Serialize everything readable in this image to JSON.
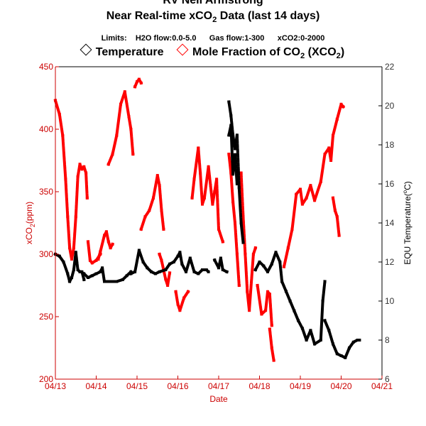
{
  "header": {
    "line1": "RV Neil Armstrong",
    "line2_pre": "Near Real-time xCO",
    "line2_sub": "2",
    "line2_post": " Data (last 14 days)",
    "limits": "Limits:    H2O flow:0.0-5.0      Gas flow:1-300      xCO2:0-2000"
  },
  "legend": {
    "temperature": "Temperature",
    "co2_pre": "Mole Fraction of CO",
    "co2_sub1": "2",
    "co2_mid": " (XCO",
    "co2_sub2": "2",
    "co2_post": ")"
  },
  "colors": {
    "co2": "#ff0000",
    "temp": "#000000",
    "axis_left": "#cc0000"
  },
  "chart_data": {
    "type": "scatter",
    "xlabel": "Date",
    "ylabel_left": "xCO2(ppm)",
    "ylabel_left_pre": "xCO",
    "ylabel_left_sub": "2",
    "ylabel_left_post": "(ppm)",
    "ylabel_right": "EQU Temperature(°C)",
    "ylabel_right_pre": "EQU Temperature(",
    "ylabel_right_sup": "o",
    "ylabel_right_post": "C)",
    "xlim": [
      0,
      8
    ],
    "x_ticks": [
      "04/13",
      "04/14",
      "04/15",
      "04/16",
      "04/17",
      "04/18",
      "04/19",
      "04/20",
      "04/21"
    ],
    "ylim_left": [
      200,
      450
    ],
    "y_ticks_left": [
      "200",
      "250",
      "300",
      "350",
      "400",
      "450"
    ],
    "ylim_right": [
      6,
      22
    ],
    "y_ticks_right": [
      "6",
      "8",
      "10",
      "12",
      "14",
      "16",
      "18",
      "20",
      "22"
    ],
    "series": [
      {
        "name": "Mole Fraction of CO2 (XCO2)",
        "axis": "left",
        "segments": [
          [
            [
              0.0,
              423
            ],
            [
              0.1,
              412
            ],
            [
              0.18,
              395
            ],
            [
              0.25,
              360
            ],
            [
              0.3,
              330
            ],
            [
              0.35,
              305
            ],
            [
              0.4,
              296
            ],
            [
              0.45,
              305
            ],
            [
              0.5,
              330
            ],
            [
              0.55,
              362
            ],
            [
              0.6,
              372
            ],
            [
              0.65,
              368
            ],
            [
              0.7,
              370
            ],
            [
              0.75,
              365
            ],
            [
              0.78,
              345
            ]
          ],
          [
            [
              0.8,
              310
            ],
            [
              0.85,
              295
            ],
            [
              0.9,
              293
            ],
            [
              1.0,
              295
            ],
            [
              1.1,
              300
            ]
          ],
          [
            [
              1.05,
              296
            ],
            [
              1.1,
              302
            ],
            [
              1.2,
              315
            ],
            [
              1.25,
              318
            ],
            [
              1.3,
              310
            ],
            [
              1.35,
              305
            ],
            [
              1.4,
              308
            ]
          ],
          [
            [
              1.3,
              372
            ],
            [
              1.4,
              380
            ],
            [
              1.5,
              395
            ],
            [
              1.6,
              420
            ],
            [
              1.7,
              430
            ],
            [
              1.8,
              410
            ],
            [
              1.85,
              400
            ],
            [
              1.9,
              380
            ]
          ],
          [
            [
              1.95,
              434
            ],
            [
              2.0,
              438
            ],
            [
              2.05,
              440
            ],
            [
              2.1,
              437
            ]
          ],
          [
            [
              2.1,
              320
            ],
            [
              2.2,
              330
            ],
            [
              2.3,
              335
            ],
            [
              2.4,
              345
            ],
            [
              2.5,
              363
            ],
            [
              2.55,
              355
            ],
            [
              2.6,
              335
            ],
            [
              2.65,
              320
            ]
          ],
          [
            [
              2.55,
              300
            ],
            [
              2.6,
              295
            ],
            [
              2.7,
              280
            ],
            [
              2.75,
              275
            ],
            [
              2.8,
              285
            ]
          ],
          [
            [
              2.95,
              270
            ],
            [
              3.0,
              260
            ],
            [
              3.05,
              255
            ],
            [
              3.15,
              265
            ],
            [
              3.25,
              270
            ]
          ],
          [
            [
              3.35,
              345
            ],
            [
              3.4,
              360
            ],
            [
              3.5,
              385
            ],
            [
              3.55,
              365
            ],
            [
              3.6,
              340
            ],
            [
              3.65,
              345
            ],
            [
              3.75,
              370
            ],
            [
              3.8,
              355
            ],
            [
              3.85,
              340
            ],
            [
              3.9,
              350
            ],
            [
              3.95,
              360
            ],
            [
              4.0,
              320
            ],
            [
              4.1,
              310
            ]
          ],
          [
            [
              4.25,
              380
            ],
            [
              4.3,
              365
            ],
            [
              4.35,
              342
            ],
            [
              4.4,
              325
            ],
            [
              4.45,
              300
            ],
            [
              4.5,
              275
            ]
          ],
          [
            [
              4.55,
              365
            ],
            [
              4.6,
              330
            ],
            [
              4.65,
              300
            ],
            [
              4.7,
              270
            ],
            [
              4.75,
              255
            ],
            [
              4.85,
              300
            ],
            [
              4.9,
              305
            ]
          ],
          [
            [
              4.95,
              275
            ],
            [
              5.05,
              252
            ],
            [
              5.15,
              255
            ],
            [
              5.2,
              270
            ],
            [
              5.25,
              268
            ],
            [
              5.3,
              243
            ]
          ],
          [
            [
              5.25,
              240
            ],
            [
              5.3,
              225
            ],
            [
              5.35,
              215
            ]
          ],
          [
            [
              5.6,
              290
            ],
            [
              5.7,
              305
            ],
            [
              5.8,
              320
            ],
            [
              5.9,
              348
            ],
            [
              6.0,
              352
            ],
            [
              6.05,
              340
            ],
            [
              6.15,
              345
            ],
            [
              6.25,
              355
            ],
            [
              6.35,
              343
            ],
            [
              6.5,
              358
            ],
            [
              6.6,
              380
            ],
            [
              6.7,
              385
            ],
            [
              6.75,
              375
            ],
            [
              6.8,
              395
            ],
            [
              6.9,
              408
            ],
            [
              7.0,
              420
            ],
            [
              7.05,
              418
            ]
          ],
          [
            [
              6.8,
              345
            ],
            [
              6.85,
              335
            ],
            [
              6.9,
              330
            ],
            [
              6.95,
              315
            ]
          ]
        ]
      },
      {
        "name": "Temperature",
        "axis": "right",
        "segments": [
          [
            [
              0.0,
              12.4
            ],
            [
              0.1,
              12.3
            ],
            [
              0.2,
              12.0
            ],
            [
              0.3,
              11.4
            ],
            [
              0.35,
              11.0
            ],
            [
              0.4,
              11.2
            ],
            [
              0.45,
              11.6
            ],
            [
              0.5,
              12.5
            ],
            [
              0.55,
              11.6
            ],
            [
              0.6,
              11.5
            ],
            [
              0.65,
              11.5
            ],
            [
              0.7,
              11.1
            ]
          ],
          [
            [
              0.7,
              11.4
            ],
            [
              0.8,
              11.2
            ],
            [
              0.9,
              11.3
            ],
            [
              1.0,
              11.4
            ],
            [
              1.1,
              11.5
            ],
            [
              1.15,
              11.7
            ],
            [
              1.2,
              11.0
            ],
            [
              1.3,
              11.0
            ],
            [
              1.5,
              11.0
            ],
            [
              1.65,
              11.1
            ],
            [
              1.75,
              11.3
            ],
            [
              1.85,
              11.5
            ]
          ],
          [
            [
              1.85,
              11.4
            ],
            [
              1.95,
              11.5
            ],
            [
              2.05,
              12.6
            ],
            [
              2.15,
              12.0
            ],
            [
              2.25,
              11.7
            ],
            [
              2.35,
              11.5
            ],
            [
              2.45,
              11.4
            ],
            [
              2.55,
              11.5
            ],
            [
              2.7,
              11.6
            ],
            [
              2.8,
              11.9
            ],
            [
              2.9,
              12.0
            ],
            [
              3.0,
              12.3
            ],
            [
              3.05,
              12.5
            ],
            [
              3.1,
              11.9
            ],
            [
              3.2,
              11.5
            ],
            [
              3.3,
              12.2
            ],
            [
              3.4,
              11.5
            ],
            [
              3.5,
              11.4
            ],
            [
              3.6,
              11.6
            ],
            [
              3.7,
              11.6
            ],
            [
              3.75,
              11.5
            ]
          ],
          [
            [
              3.9,
              12.1
            ],
            [
              4.0,
              11.7
            ],
            [
              4.05,
              12.2
            ],
            [
              4.1,
              11.6
            ],
            [
              4.2,
              11.5
            ]
          ],
          [
            [
              4.25,
              18.5
            ],
            [
              4.3,
              19.0
            ],
            [
              4.35,
              16.5
            ],
            [
              4.4,
              17.5
            ],
            [
              4.45,
              16.0
            ]
          ],
          [
            [
              4.25,
              20.2
            ],
            [
              4.3,
              19.5
            ],
            [
              4.35,
              18.5
            ],
            [
              4.4,
              17.8
            ],
            [
              4.45,
              18.5
            ],
            [
              4.5,
              15.8
            ],
            [
              4.55,
              14.0
            ],
            [
              4.6,
              13.0
            ]
          ],
          [
            [
              4.9,
              11.6
            ],
            [
              5.0,
              12.0
            ],
            [
              5.1,
              11.8
            ],
            [
              5.2,
              11.5
            ],
            [
              5.3,
              11.9
            ],
            [
              5.4,
              12.5
            ],
            [
              5.5,
              12.0
            ],
            [
              5.55,
              11.0
            ],
            [
              5.65,
              10.5
            ],
            [
              5.75,
              10.0
            ],
            [
              5.85,
              9.5
            ],
            [
              5.95,
              9.0
            ],
            [
              6.05,
              8.6
            ],
            [
              6.15,
              8.0
            ],
            [
              6.25,
              8.5
            ],
            [
              6.35,
              7.8
            ],
            [
              6.5,
              8.0
            ],
            [
              6.55,
              10.0
            ],
            [
              6.6,
              11.0
            ]
          ],
          [
            [
              6.6,
              9.0
            ],
            [
              6.7,
              8.5
            ],
            [
              6.8,
              7.8
            ],
            [
              6.9,
              7.3
            ],
            [
              7.0,
              7.2
            ],
            [
              7.1,
              7.1
            ],
            [
              7.2,
              7.6
            ],
            [
              7.3,
              7.9
            ],
            [
              7.4,
              8.0
            ],
            [
              7.45,
              8.0
            ]
          ]
        ]
      }
    ]
  }
}
